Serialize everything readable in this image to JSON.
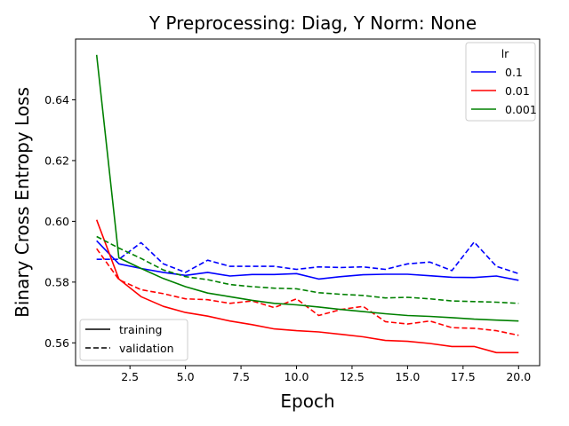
{
  "chart_data": {
    "type": "line",
    "title": "Y Preprocessing: Diag, Y Norm: None",
    "xlabel": "Epoch",
    "ylabel": "Binary Cross Entropy Loss",
    "xlim": [
      0.05,
      20.95
    ],
    "ylim": [
      0.5525,
      0.66
    ],
    "xticks": [
      2.5,
      5.0,
      7.5,
      10.0,
      12.5,
      15.0,
      17.5,
      20.0
    ],
    "xtick_labels": [
      "2.5",
      "5.0",
      "7.5",
      "10.0",
      "12.5",
      "15.0",
      "17.5",
      "20.0"
    ],
    "yticks": [
      0.56,
      0.58,
      0.6,
      0.62,
      0.64
    ],
    "ytick_labels": [
      "0.56",
      "0.58",
      "0.60",
      "0.62",
      "0.64"
    ],
    "grid": false,
    "legend_lr": {
      "title": "lr",
      "placement": "top-right",
      "entries": [
        {
          "label": "0.1",
          "color": "#0000ff"
        },
        {
          "label": "0.01",
          "color": "#ff0000"
        },
        {
          "label": "0.001",
          "color": "#008000"
        }
      ]
    },
    "legend_split": {
      "placement": "bottom-left",
      "entries": [
        {
          "label": "training",
          "style": "solid"
        },
        {
          "label": "validation",
          "style": "dashed"
        }
      ]
    },
    "x": [
      1,
      2,
      3,
      4,
      5,
      6,
      7,
      8,
      9,
      10,
      11,
      12,
      13,
      14,
      15,
      16,
      17,
      18,
      19,
      20
    ],
    "series": [
      {
        "lr": "0.1",
        "split": "training",
        "color": "#0000ff",
        "style": "solid",
        "values": [
          0.5936,
          0.586,
          0.5845,
          0.5832,
          0.5822,
          0.5832,
          0.582,
          0.5825,
          0.5825,
          0.5828,
          0.581,
          0.5818,
          0.5824,
          0.5826,
          0.5826,
          0.5821,
          0.5816,
          0.5815,
          0.582,
          0.5806
        ]
      },
      {
        "lr": "0.1",
        "split": "validation",
        "color": "#0000ff",
        "style": "dashed",
        "values": [
          0.5875,
          0.5875,
          0.593,
          0.586,
          0.5832,
          0.5872,
          0.5852,
          0.5852,
          0.5852,
          0.5842,
          0.585,
          0.5848,
          0.585,
          0.5842,
          0.586,
          0.5866,
          0.5838,
          0.5932,
          0.5852,
          0.5828
        ]
      },
      {
        "lr": "0.01",
        "split": "training",
        "color": "#ff0000",
        "style": "solid",
        "values": [
          0.6005,
          0.581,
          0.5752,
          0.572,
          0.57,
          0.5688,
          0.5672,
          0.566,
          0.5646,
          0.564,
          0.5636,
          0.5628,
          0.562,
          0.5608,
          0.5605,
          0.5598,
          0.5588,
          0.5588,
          0.5568,
          0.5568
        ]
      },
      {
        "lr": "0.01",
        "split": "validation",
        "color": "#ff0000",
        "style": "dashed",
        "values": [
          0.591,
          0.5808,
          0.5775,
          0.5762,
          0.5745,
          0.5742,
          0.573,
          0.5738,
          0.5716,
          0.5745,
          0.569,
          0.571,
          0.572,
          0.567,
          0.5662,
          0.5672,
          0.565,
          0.5648,
          0.564,
          0.5625
        ]
      },
      {
        "lr": "0.001",
        "split": "training",
        "color": "#008000",
        "style": "solid",
        "values": [
          0.6548,
          0.588,
          0.5845,
          0.5812,
          0.5785,
          0.5764,
          0.5752,
          0.574,
          0.573,
          0.5725,
          0.5718,
          0.571,
          0.5703,
          0.5696,
          0.569,
          0.5687,
          0.5683,
          0.5678,
          0.5675,
          0.5672
        ]
      },
      {
        "lr": "0.001",
        "split": "validation",
        "color": "#008000",
        "style": "dashed",
        "values": [
          0.595,
          0.5912,
          0.5878,
          0.584,
          0.5818,
          0.5808,
          0.5792,
          0.5785,
          0.578,
          0.5778,
          0.5765,
          0.576,
          0.5756,
          0.5748,
          0.575,
          0.5745,
          0.5738,
          0.5736,
          0.5734,
          0.573
        ]
      }
    ]
  }
}
